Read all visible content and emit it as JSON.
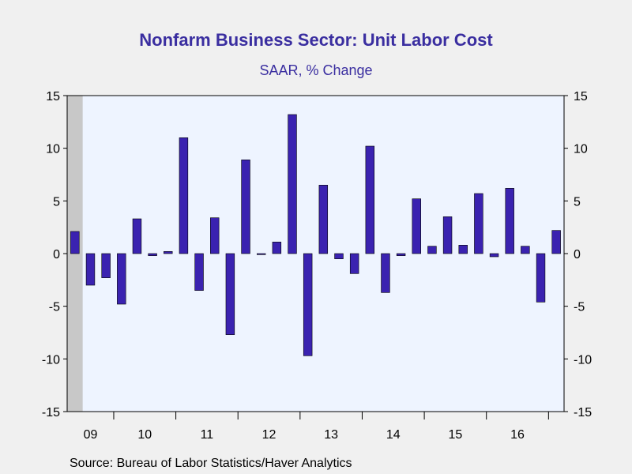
{
  "chart_data": {
    "type": "bar",
    "title": "Nonfarm Business Sector: Unit Labor Cost",
    "subtitle": "SAAR, % Change",
    "source": "Source:  Bureau of Labor Statistics/Haver Analytics",
    "ylim": [
      -15,
      15
    ],
    "yticks": [
      15,
      10,
      5,
      0,
      -5,
      -10,
      -15
    ],
    "x_labels": [
      "09",
      "10",
      "11",
      "12",
      "13",
      "14",
      "15",
      "16"
    ],
    "recession_shading": {
      "from": "2009-Q2",
      "to": "2009-Q2"
    },
    "categories": [
      "2009-Q2",
      "2009-Q3",
      "2009-Q4",
      "2010-Q1",
      "2010-Q2",
      "2010-Q3",
      "2010-Q4",
      "2011-Q1",
      "2011-Q2",
      "2011-Q3",
      "2011-Q4",
      "2012-Q1",
      "2012-Q2",
      "2012-Q3",
      "2012-Q4",
      "2013-Q1",
      "2013-Q2",
      "2013-Q3",
      "2013-Q4",
      "2014-Q1",
      "2014-Q2",
      "2014-Q3",
      "2014-Q4",
      "2015-Q1",
      "2015-Q2",
      "2015-Q3",
      "2015-Q4",
      "2016-Q1",
      "2016-Q2",
      "2016-Q3",
      "2016-Q4",
      "2017-Q1"
    ],
    "values": [
      2.1,
      -3.0,
      -2.3,
      -4.8,
      3.3,
      -0.2,
      0.2,
      11.0,
      -3.5,
      3.4,
      -7.7,
      8.9,
      -0.1,
      1.1,
      13.2,
      -9.7,
      6.5,
      -0.5,
      -1.9,
      10.2,
      -3.7,
      -0.2,
      5.2,
      0.7,
      3.5,
      0.8,
      5.7,
      -0.3,
      6.2,
      0.7,
      -4.6,
      2.2
    ],
    "colors": {
      "bar": "#3a22b0",
      "plot_bg": "#eef4ff",
      "shade": "#c8c8c8",
      "text": "#3a2ea0"
    },
    "grid": false
  }
}
